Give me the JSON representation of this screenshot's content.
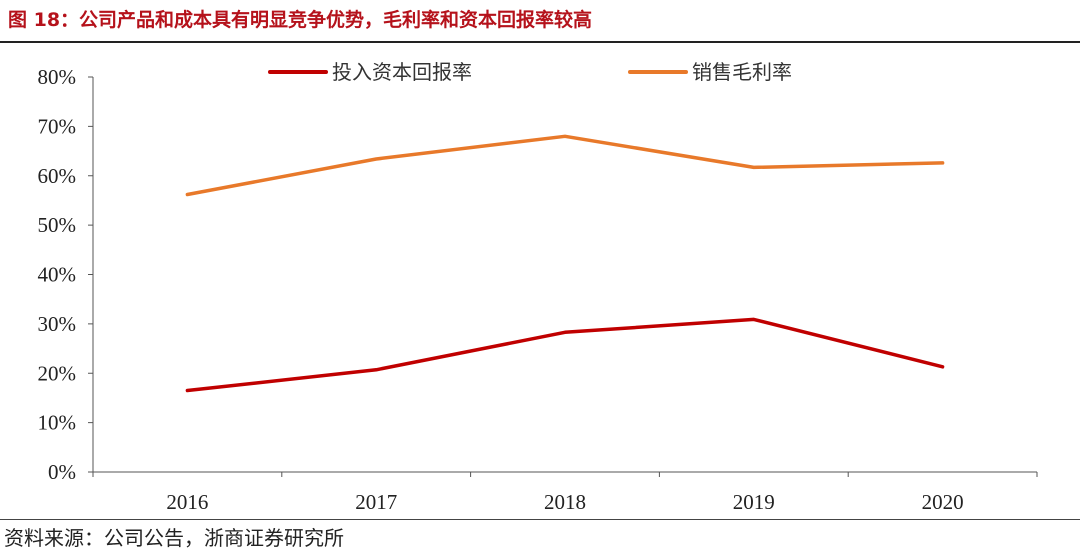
{
  "figure": {
    "title": "图 18：公司产品和成本具有明显竞争优势，毛利率和资本回报率较高",
    "source": "资料来源：公司公告，浙商证券研究所"
  },
  "chart_data": {
    "type": "line",
    "title": "公司产品和成本具有明显竞争优势，毛利率和资本回报率较高",
    "xlabel": "",
    "ylabel": "",
    "categories": [
      "2016",
      "2017",
      "2018",
      "2019",
      "2020"
    ],
    "y_ticks": [
      "0%",
      "10%",
      "20%",
      "30%",
      "40%",
      "50%",
      "60%",
      "70%",
      "80%"
    ],
    "ylim": [
      0,
      80
    ],
    "grid": false,
    "legend_position": "top",
    "series": [
      {
        "name": "投入资本回报率",
        "color": "#c00000",
        "values": [
          16.5,
          20.7,
          28.3,
          30.9,
          21.3
        ]
      },
      {
        "name": "销售毛利率",
        "color": "#e8792a",
        "values": [
          56.2,
          63.4,
          68.0,
          61.7,
          62.6
        ]
      }
    ]
  }
}
